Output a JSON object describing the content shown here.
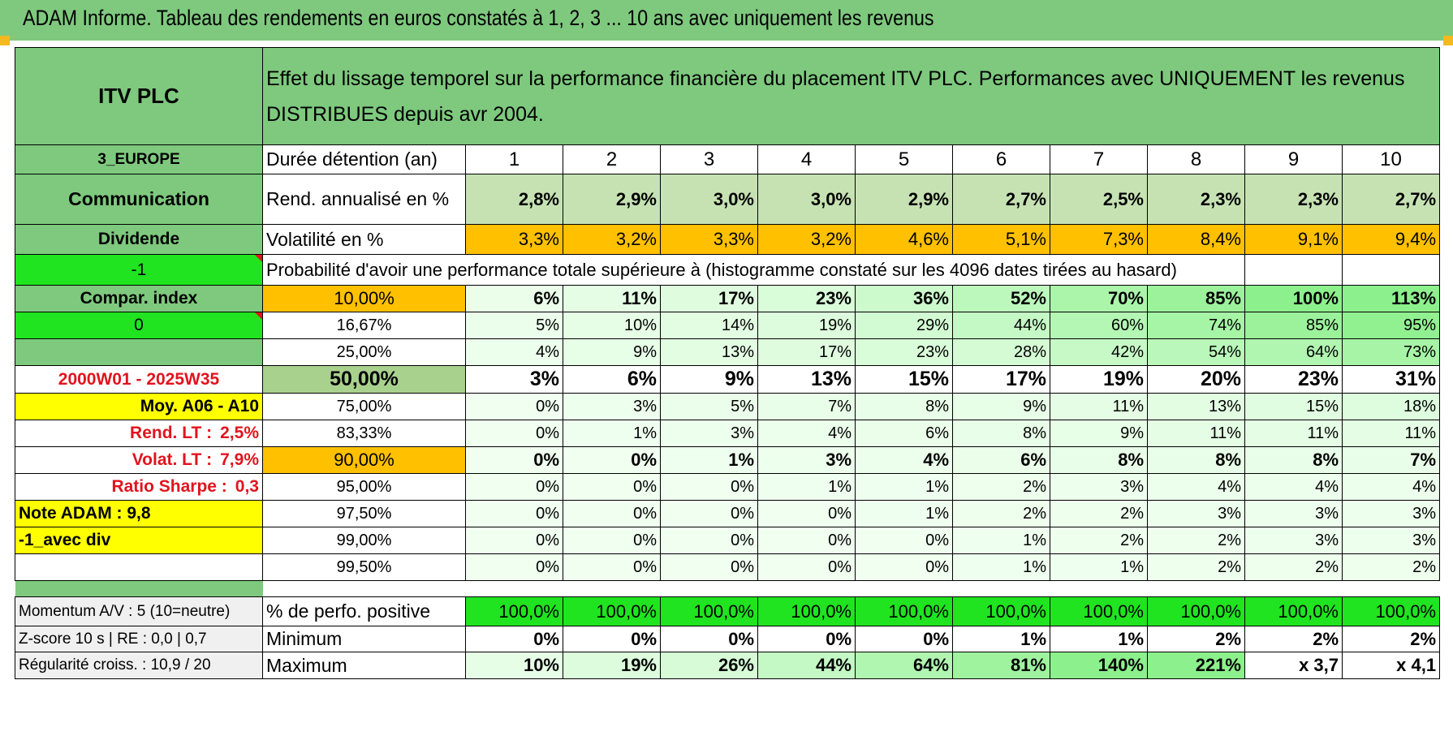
{
  "title": "ADAM Informe. Tableau des rendements en euros constatés à 1, 2, 3 ... 10 ans avec uniquement les revenus",
  "fund": "ITV PLC",
  "description": "Effet du lissage temporel sur la performance financière du placement ITV PLC. Performances avec UNIQUEMENT les revenus DISTRIBUES depuis avr 2004.",
  "left": {
    "zone": "3_EUROPE",
    "sector": "Communication",
    "type": "Dividende",
    "flag1": "-1",
    "compar": "Compar. index",
    "flag2": "0",
    "period": "2000W01 - 2025W35",
    "moy": "Moy. A06 - A10",
    "rend_lt_label": "Rend. LT :",
    "rend_lt_value": "2,5%",
    "volat_lt_label": "Volat. LT :",
    "volat_lt_value": "7,9%",
    "sharpe_label": "Ratio Sharpe :",
    "sharpe_value": "0,3",
    "note": "Note ADAM : 9,8",
    "variant": "-1_avec div",
    "momentum": "Momentum A/V : 5 (10=neutre)",
    "zscore": "Z-score 10 s | RE : 0,0 | 0,7",
    "regularite": "Régularité croiss. : 10,9 / 20"
  },
  "labels": {
    "duree": "Durée détention (an)",
    "rend": "Rend. annualisé en %",
    "volat": "Volatilité en %",
    "proba": "Probabilité d'avoir une performance totale supérieure à (histogramme constaté sur les 4096 dates tirées au hasard)",
    "positive": "% de perfo. positive",
    "minimum": "Minimum",
    "maximum": "Maximum"
  },
  "years": [
    "1",
    "2",
    "3",
    "4",
    "5",
    "6",
    "7",
    "8",
    "9",
    "10"
  ],
  "rend": [
    "2,8%",
    "2,9%",
    "3,0%",
    "3,0%",
    "2,9%",
    "2,7%",
    "2,5%",
    "2,3%",
    "2,3%",
    "2,7%"
  ],
  "volat": [
    "3,3%",
    "3,2%",
    "3,3%",
    "3,2%",
    "4,6%",
    "5,1%",
    "7,3%",
    "8,4%",
    "9,1%",
    "9,4%"
  ],
  "prob_rows": [
    {
      "threshold": "10,00%",
      "values": [
        "6%",
        "11%",
        "17%",
        "23%",
        "36%",
        "52%",
        "70%",
        "85%",
        "100%",
        "113%"
      ]
    },
    {
      "threshold": "16,67%",
      "values": [
        "5%",
        "10%",
        "14%",
        "19%",
        "29%",
        "44%",
        "60%",
        "74%",
        "85%",
        "95%"
      ]
    },
    {
      "threshold": "25,00%",
      "values": [
        "4%",
        "9%",
        "13%",
        "17%",
        "23%",
        "28%",
        "42%",
        "54%",
        "64%",
        "73%"
      ]
    },
    {
      "threshold": "50,00%",
      "values": [
        "3%",
        "6%",
        "9%",
        "13%",
        "15%",
        "17%",
        "19%",
        "20%",
        "23%",
        "31%"
      ]
    },
    {
      "threshold": "75,00%",
      "values": [
        "0%",
        "3%",
        "5%",
        "7%",
        "8%",
        "9%",
        "11%",
        "13%",
        "15%",
        "18%"
      ]
    },
    {
      "threshold": "83,33%",
      "values": [
        "0%",
        "1%",
        "3%",
        "4%",
        "6%",
        "8%",
        "9%",
        "11%",
        "11%",
        "11%"
      ]
    },
    {
      "threshold": "90,00%",
      "values": [
        "0%",
        "0%",
        "1%",
        "3%",
        "4%",
        "6%",
        "8%",
        "8%",
        "8%",
        "7%"
      ]
    },
    {
      "threshold": "95,00%",
      "values": [
        "0%",
        "0%",
        "0%",
        "1%",
        "1%",
        "2%",
        "3%",
        "4%",
        "4%",
        "4%"
      ]
    },
    {
      "threshold": "97,50%",
      "values": [
        "0%",
        "0%",
        "0%",
        "0%",
        "1%",
        "2%",
        "2%",
        "3%",
        "3%",
        "3%"
      ]
    },
    {
      "threshold": "99,00%",
      "values": [
        "0%",
        "0%",
        "0%",
        "0%",
        "0%",
        "1%",
        "2%",
        "2%",
        "3%",
        "3%"
      ]
    },
    {
      "threshold": "99,50%",
      "values": [
        "0%",
        "0%",
        "0%",
        "0%",
        "0%",
        "1%",
        "1%",
        "2%",
        "2%",
        "2%"
      ]
    }
  ],
  "positive": [
    "100,0%",
    "100,0%",
    "100,0%",
    "100,0%",
    "100,0%",
    "100,0%",
    "100,0%",
    "100,0%",
    "100,0%",
    "100,0%"
  ],
  "minimum": [
    "0%",
    "0%",
    "0%",
    "0%",
    "0%",
    "1%",
    "1%",
    "2%",
    "2%",
    "2%"
  ],
  "maximum": [
    "10%",
    "19%",
    "26%",
    "44%",
    "64%",
    "81%",
    "140%",
    "221%",
    "x 3,7",
    "x 4,1"
  ],
  "colors": {
    "header_green": "#7ec97e",
    "bright_green": "#1fe41f",
    "orange": "#ffc000",
    "yellow": "#ffff00",
    "red_text": "#e0141e",
    "light_green": "#c6e2b3"
  }
}
